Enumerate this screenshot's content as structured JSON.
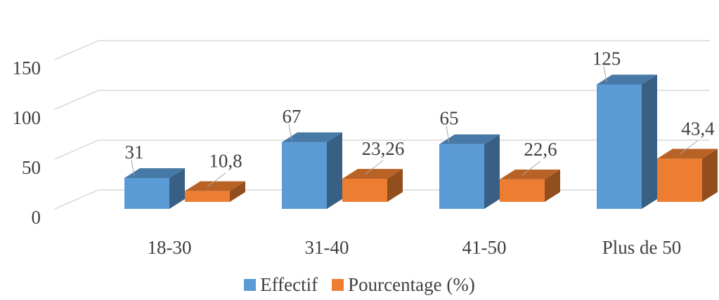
{
  "chart_data": {
    "type": "bar",
    "categories": [
      "18-30",
      "31-40",
      "41-50",
      "Plus de 50"
    ],
    "series": [
      {
        "name": "Effectif",
        "values": [
          31,
          67,
          65,
          125
        ],
        "labels": [
          "31",
          "67",
          "65",
          "125"
        ],
        "color": "#5B9BD5"
      },
      {
        "name": "Pourcentage (%)",
        "values": [
          10.8,
          23.26,
          22.6,
          43.4
        ],
        "labels": [
          "10,8",
          "23,26",
          "22,6",
          "43,4"
        ],
        "color": "#ED7D31"
      }
    ],
    "y_ticks": [
      "0",
      "50",
      "100",
      "150"
    ],
    "ylim": [
      0,
      150
    ],
    "grid": true,
    "three_d": true,
    "legend_position": "bottom",
    "title": "",
    "xlabel": "",
    "ylabel": ""
  }
}
